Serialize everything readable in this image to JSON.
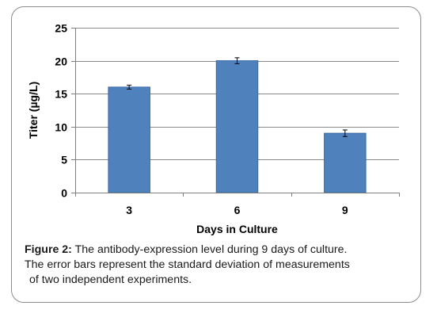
{
  "chart_data": {
    "type": "bar",
    "categories": [
      "3",
      "6",
      "9"
    ],
    "values": [
      16,
      20,
      9
    ],
    "error": [
      0.3,
      0.45,
      0.5
    ],
    "xlabel": "Days in Culture",
    "ylabel": "Titer (µg/L)",
    "ylim": [
      0,
      25
    ],
    "yticks": [
      "0",
      "5",
      "10",
      "15",
      "20",
      "25"
    ],
    "ytick_values": [
      0,
      5,
      10,
      15,
      20,
      25
    ],
    "grid": true,
    "legend": "none",
    "bar_color": "#4f81bd",
    "bar_edge_color": "#3a6aa6",
    "gridline_color": "#8a8a8a"
  },
  "caption": {
    "label": "Figure 2:",
    "line1": " The antibody-expression level during 9 days of culture.",
    "line2": "The error bars represent the standard deviation of measurements",
    "line3": "of two independent experiments."
  }
}
